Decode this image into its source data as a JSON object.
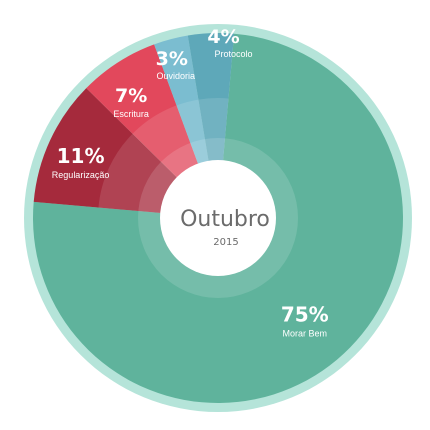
{
  "chart_data": {
    "type": "pie",
    "categories": [
      "Morar Bem",
      "Regularização",
      "Escritura",
      "Ouvidoria",
      "Protocolo"
    ],
    "values": [
      75,
      11,
      7,
      3,
      4
    ],
    "value_labels": [
      "75%",
      "11%",
      "7%",
      "3%",
      "4%"
    ],
    "colors": [
      "#5fb39c",
      "#a52a3c",
      "#e2485c",
      "#7bbdd0",
      "#5ea8b9"
    ],
    "ring_color": "#b5e4d9",
    "center": {
      "title": "Outubro",
      "subtitle": "2015"
    }
  }
}
